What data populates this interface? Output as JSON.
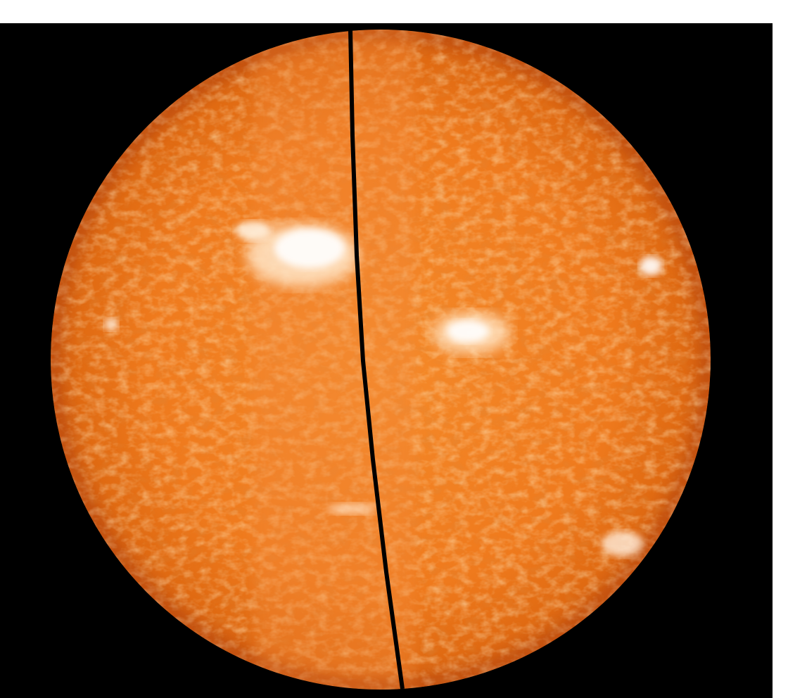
{
  "image": {
    "subject": "solar-disk",
    "colors": {
      "background": "#ffffff",
      "sky": "#000000",
      "disk_base": "#f07a1c",
      "disk_dark": "#c9500e",
      "disk_bright": "#ffd9a8",
      "seam": "#000000"
    }
  }
}
